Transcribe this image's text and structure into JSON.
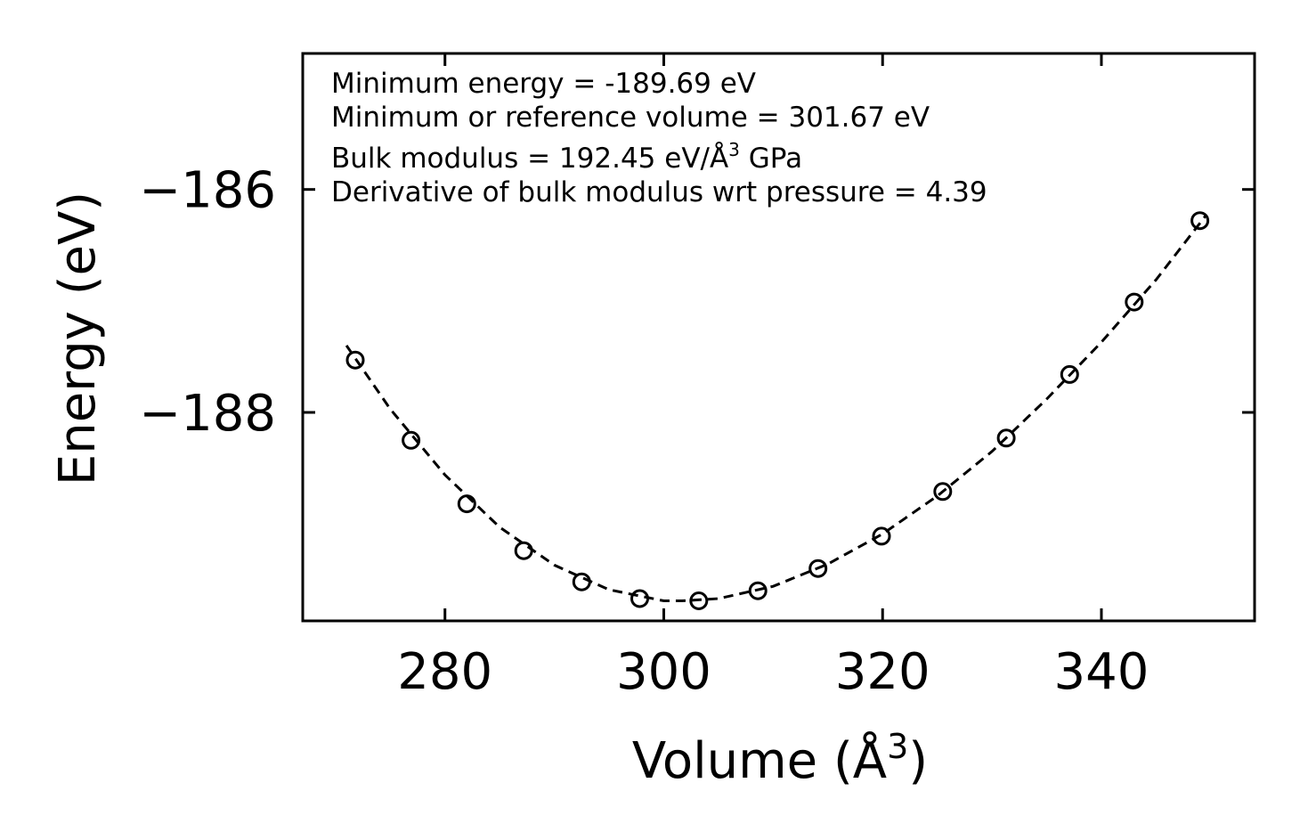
{
  "chart_data": {
    "type": "scatter",
    "xlabel": "Volume (Å",
    "xlabel_sup": "3",
    "xlabel_tail": ")",
    "ylabel": "Energy (eV)",
    "xlim": [
      267,
      354
    ],
    "ylim": [
      -189.87,
      -184.78
    ],
    "xticks": [
      280,
      300,
      320,
      340
    ],
    "yticks": [
      -186,
      -188
    ],
    "xtick_labels": [
      "280",
      "300",
      "320",
      "340"
    ],
    "ytick_labels": [
      "−186",
      "−188"
    ],
    "annotations": {
      "line1": "Minimum energy = -189.69 eV",
      "line2": "Minimum or reference volume = 301.67 eV",
      "line3_pre": "Bulk modulus = 192.45 eV/Å",
      "line3_sup": "3",
      "line3_post": " GPa",
      "line4": "Derivative of bulk modulus wrt pressure = 4.39"
    },
    "series": [
      {
        "style": "open-circle",
        "x": [
          271.8,
          276.9,
          282.0,
          287.2,
          292.5,
          297.8,
          303.2,
          308.6,
          314.1,
          319.9,
          325.5,
          331.3,
          337.1,
          343.0,
          349.0
        ],
        "y": [
          -187.53,
          -188.25,
          -188.82,
          -189.24,
          -189.52,
          -189.67,
          -189.69,
          -189.6,
          -189.4,
          -189.11,
          -188.71,
          -188.23,
          -187.66,
          -187.01,
          -186.28
        ]
      },
      {
        "style": "dashed-fit",
        "x": [
          271.0,
          275.0,
          280.0,
          285.0,
          290.0,
          295.0,
          300.0,
          301.67,
          305.0,
          310.0,
          315.0,
          320.0,
          325.0,
          330.0,
          335.0,
          340.0,
          345.0,
          349.5
        ],
        "y": [
          -187.4,
          -187.97,
          -188.56,
          -189.03,
          -189.37,
          -189.59,
          -189.69,
          -189.69,
          -189.67,
          -189.56,
          -189.36,
          -189.09,
          -188.75,
          -188.35,
          -187.88,
          -187.37,
          -186.81,
          -186.24
        ]
      }
    ]
  }
}
